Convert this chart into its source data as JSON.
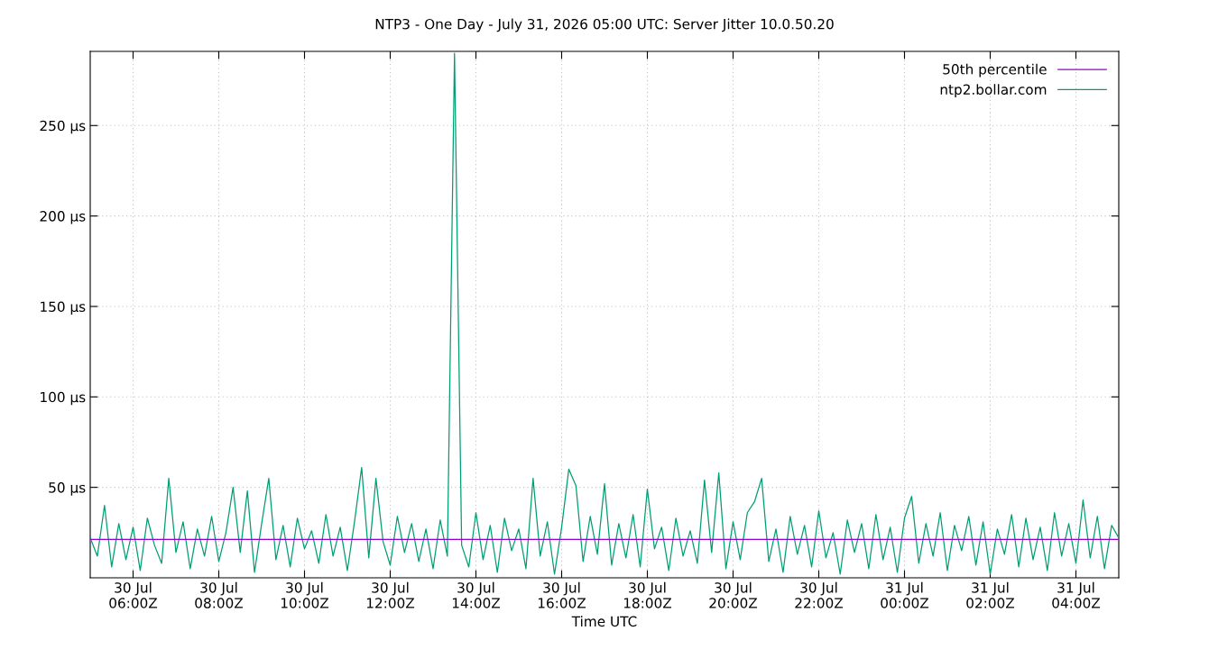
{
  "chart_data": {
    "type": "line",
    "title": "NTP3 - One Day - July 31, 2026 05:00 UTC: Server Jitter 10.0.50.20",
    "xlabel": "Time UTC",
    "x": [
      "2026-07-30T05:00",
      "2026-07-30T05:10",
      "2026-07-30T05:20",
      "2026-07-30T05:30",
      "2026-07-30T05:40",
      "2026-07-30T05:50",
      "2026-07-30T06:00",
      "2026-07-30T06:10",
      "2026-07-30T06:20",
      "2026-07-30T06:30",
      "2026-07-30T06:40",
      "2026-07-30T06:50",
      "2026-07-30T07:00",
      "2026-07-30T07:10",
      "2026-07-30T07:20",
      "2026-07-30T07:30",
      "2026-07-30T07:40",
      "2026-07-30T07:50",
      "2026-07-30T08:00",
      "2026-07-30T08:10",
      "2026-07-30T08:20",
      "2026-07-30T08:30",
      "2026-07-30T08:40",
      "2026-07-30T08:50",
      "2026-07-30T09:00",
      "2026-07-30T09:10",
      "2026-07-30T09:20",
      "2026-07-30T09:30",
      "2026-07-30T09:40",
      "2026-07-30T09:50",
      "2026-07-30T10:00",
      "2026-07-30T10:10",
      "2026-07-30T10:20",
      "2026-07-30T10:30",
      "2026-07-30T10:40",
      "2026-07-30T10:50",
      "2026-07-30T11:00",
      "2026-07-30T11:10",
      "2026-07-30T11:20",
      "2026-07-30T11:30",
      "2026-07-30T11:40",
      "2026-07-30T11:50",
      "2026-07-30T12:00",
      "2026-07-30T12:10",
      "2026-07-30T12:20",
      "2026-07-30T12:30",
      "2026-07-30T12:40",
      "2026-07-30T12:50",
      "2026-07-30T13:00",
      "2026-07-30T13:10",
      "2026-07-30T13:20",
      "2026-07-30T13:30",
      "2026-07-30T13:40",
      "2026-07-30T13:50",
      "2026-07-30T14:00",
      "2026-07-30T14:10",
      "2026-07-30T14:20",
      "2026-07-30T14:30",
      "2026-07-30T14:40",
      "2026-07-30T14:50",
      "2026-07-30T15:00",
      "2026-07-30T15:10",
      "2026-07-30T15:20",
      "2026-07-30T15:30",
      "2026-07-30T15:40",
      "2026-07-30T15:50",
      "2026-07-30T16:00",
      "2026-07-30T16:10",
      "2026-07-30T16:20",
      "2026-07-30T16:30",
      "2026-07-30T16:40",
      "2026-07-30T16:50",
      "2026-07-30T17:00",
      "2026-07-30T17:10",
      "2026-07-30T17:20",
      "2026-07-30T17:30",
      "2026-07-30T17:40",
      "2026-07-30T17:50",
      "2026-07-30T18:00",
      "2026-07-30T18:10",
      "2026-07-30T18:20",
      "2026-07-30T18:30",
      "2026-07-30T18:40",
      "2026-07-30T18:50",
      "2026-07-30T19:00",
      "2026-07-30T19:10",
      "2026-07-30T19:20",
      "2026-07-30T19:30",
      "2026-07-30T19:40",
      "2026-07-30T19:50",
      "2026-07-30T20:00",
      "2026-07-30T20:10",
      "2026-07-30T20:20",
      "2026-07-30T20:30",
      "2026-07-30T20:40",
      "2026-07-30T20:50",
      "2026-07-30T21:00",
      "2026-07-30T21:10",
      "2026-07-30T21:20",
      "2026-07-30T21:30",
      "2026-07-30T21:40",
      "2026-07-30T21:50",
      "2026-07-30T22:00",
      "2026-07-30T22:10",
      "2026-07-30T22:20",
      "2026-07-30T22:30",
      "2026-07-30T22:40",
      "2026-07-30T22:50",
      "2026-07-30T23:00",
      "2026-07-30T23:10",
      "2026-07-30T23:20",
      "2026-07-30T23:30",
      "2026-07-30T23:40",
      "2026-07-30T23:50",
      "2026-07-31T00:00",
      "2026-07-31T00:10",
      "2026-07-31T00:20",
      "2026-07-31T00:30",
      "2026-07-31T00:40",
      "2026-07-31T00:50",
      "2026-07-31T01:00",
      "2026-07-31T01:10",
      "2026-07-31T01:20",
      "2026-07-31T01:30",
      "2026-07-31T01:40",
      "2026-07-31T01:50",
      "2026-07-31T02:00",
      "2026-07-31T02:10",
      "2026-07-31T02:20",
      "2026-07-31T02:30",
      "2026-07-31T02:40",
      "2026-07-31T02:50",
      "2026-07-31T03:00",
      "2026-07-31T03:10",
      "2026-07-31T03:20",
      "2026-07-31T03:30",
      "2026-07-31T03:40",
      "2026-07-31T03:50",
      "2026-07-31T04:00",
      "2026-07-31T04:10",
      "2026-07-31T04:20",
      "2026-07-31T04:30",
      "2026-07-31T04:40",
      "2026-07-31T04:50",
      "2026-07-31T05:00"
    ],
    "series": [
      {
        "name": "50th percentile",
        "color": "#9400d3",
        "x": [
          "2026-07-30T05:00",
          "2026-07-31T05:00"
        ],
        "values": [
          21.3,
          21.3
        ]
      },
      {
        "name": "ntp2.bollar.com",
        "color": "#009e73",
        "values": [
          22,
          12,
          40,
          6,
          30,
          10,
          28,
          4,
          33,
          18,
          8,
          55,
          14,
          31,
          5,
          27,
          12,
          34,
          9,
          25,
          50,
          14,
          48,
          3,
          30,
          55,
          10,
          29,
          6,
          33,
          16,
          26,
          8,
          35,
          12,
          28,
          4,
          31,
          61,
          11,
          55,
          20,
          7,
          34,
          14,
          30,
          9,
          27,
          5,
          32,
          12,
          290,
          18,
          6,
          36,
          10,
          29,
          3,
          33,
          15,
          27,
          5,
          55,
          12,
          31,
          2,
          28,
          60,
          51,
          9,
          34,
          13,
          52,
          7,
          30,
          11,
          35,
          6,
          49,
          16,
          28,
          4,
          33,
          12,
          26,
          8,
          54,
          14,
          58,
          5,
          31,
          10,
          36,
          42,
          55,
          9,
          27,
          3,
          34,
          13,
          29,
          6,
          37,
          11,
          25,
          2,
          32,
          14,
          30,
          5,
          35,
          10,
          28,
          3,
          33,
          45,
          8,
          30,
          12,
          36,
          4,
          29,
          15,
          34,
          7,
          31,
          2,
          27,
          13,
          35,
          6,
          33,
          10,
          28,
          4,
          36,
          12,
          30,
          8,
          43,
          11,
          34,
          5,
          29,
          22
        ]
      }
    ],
    "xlim": [
      "2026-07-30T05:00",
      "2026-07-31T05:00"
    ],
    "xticks": [
      {
        "value": "2026-07-30T06:00",
        "label": "30 Jul\n06:00Z"
      },
      {
        "value": "2026-07-30T08:00",
        "label": "30 Jul\n08:00Z"
      },
      {
        "value": "2026-07-30T10:00",
        "label": "30 Jul\n10:00Z"
      },
      {
        "value": "2026-07-30T12:00",
        "label": "30 Jul\n12:00Z"
      },
      {
        "value": "2026-07-30T14:00",
        "label": "30 Jul\n14:00Z"
      },
      {
        "value": "2026-07-30T16:00",
        "label": "30 Jul\n16:00Z"
      },
      {
        "value": "2026-07-30T18:00",
        "label": "30 Jul\n18:00Z"
      },
      {
        "value": "2026-07-30T20:00",
        "label": "30 Jul\n20:00Z"
      },
      {
        "value": "2026-07-30T22:00",
        "label": "30 Jul\n22:00Z"
      },
      {
        "value": "2026-07-31T00:00",
        "label": "31 Jul\n00:00Z"
      },
      {
        "value": "2026-07-31T02:00",
        "label": "31 Jul\n02:00Z"
      },
      {
        "value": "2026-07-31T04:00",
        "label": "31 Jul\n04:00Z"
      }
    ],
    "ylim": [
      0,
      291
    ],
    "yticks": [
      {
        "value": 50,
        "label": "50 µs"
      },
      {
        "value": 100,
        "label": "100 µs"
      },
      {
        "value": 150,
        "label": "150 µs"
      },
      {
        "value": 200,
        "label": "200 µs"
      },
      {
        "value": 250,
        "label": "250 µs"
      }
    ],
    "grid": true,
    "legend": "top right",
    "marker": "none",
    "line_style": "solid"
  }
}
